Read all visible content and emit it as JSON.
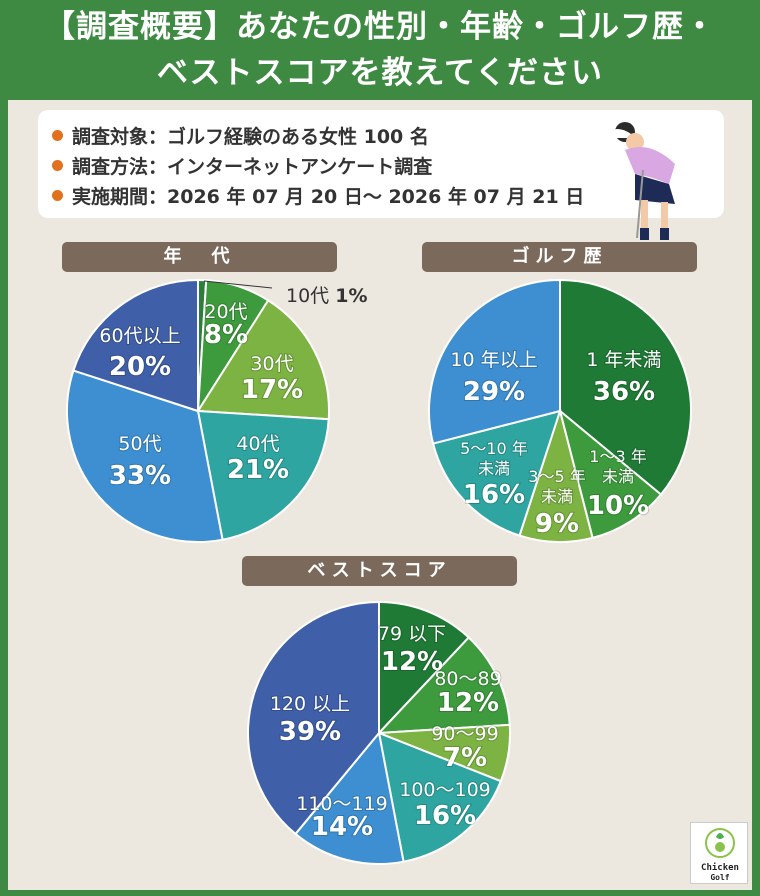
{
  "header": {
    "title_line1": "【調査概要】あなたの性別・年齢・ゴルフ歴・",
    "title_line2": "ベストスコアを教えてください"
  },
  "survey": {
    "target": "調査対象：ゴルフ経験のある女性 100 名",
    "method": "調査方法：インターネットアンケート調査",
    "period": "実施期間：2026 年 07 月 20 日～ 2026 年 07 月 21 日"
  },
  "logo": {
    "line1": "Chicken",
    "line2": "Golf"
  },
  "chart_data": [
    {
      "type": "pie",
      "title": "年　代",
      "slices": [
        {
          "label": "10代",
          "value": 1,
          "display": "1%",
          "color": "#2e7d3b"
        },
        {
          "label": "20代",
          "value": 8,
          "display": "8%",
          "color": "#3d9b3d"
        },
        {
          "label": "30代",
          "value": 17,
          "display": "17%",
          "color": "#7cb342"
        },
        {
          "label": "40代",
          "value": 21,
          "display": "21%",
          "color": "#2ea5a0"
        },
        {
          "label": "50代",
          "value": 33,
          "display": "33%",
          "color": "#3d8fd1"
        },
        {
          "label": "60代以上",
          "value": 20,
          "display": "20%",
          "color": "#3f5fa8"
        }
      ]
    },
    {
      "type": "pie",
      "title": "ゴルフ歴",
      "slices": [
        {
          "label": "1 年未満",
          "value": 36,
          "display": "36%",
          "color": "#1f7a36"
        },
        {
          "label": "1～3 年未満",
          "value": 10,
          "display": "10%",
          "color": "#3d9b3d"
        },
        {
          "label": "3～5 年未満",
          "value": 9,
          "display": "9%",
          "color": "#7cb342"
        },
        {
          "label": "5～10 年未満",
          "value": 16,
          "display": "16%",
          "color": "#2ea5a0"
        },
        {
          "label": "10 年以上",
          "value": 29,
          "display": "29%",
          "color": "#3d8fd1"
        }
      ]
    },
    {
      "type": "pie",
      "title": "ベストスコア",
      "slices": [
        {
          "label": "79 以下",
          "value": 12,
          "display": "12%",
          "color": "#1f7a36"
        },
        {
          "label": "80～89",
          "value": 12,
          "display": "12%",
          "color": "#3d9b3d"
        },
        {
          "label": "90～99",
          "value": 7,
          "display": "7%",
          "color": "#7cb342"
        },
        {
          "label": "100～109",
          "value": 16,
          "display": "16%",
          "color": "#2ea5a0"
        },
        {
          "label": "110～119",
          "value": 14,
          "display": "14%",
          "color": "#3d8fd1"
        },
        {
          "label": "120 以上",
          "value": 39,
          "display": "39%",
          "color": "#3f5fa8"
        }
      ]
    }
  ]
}
